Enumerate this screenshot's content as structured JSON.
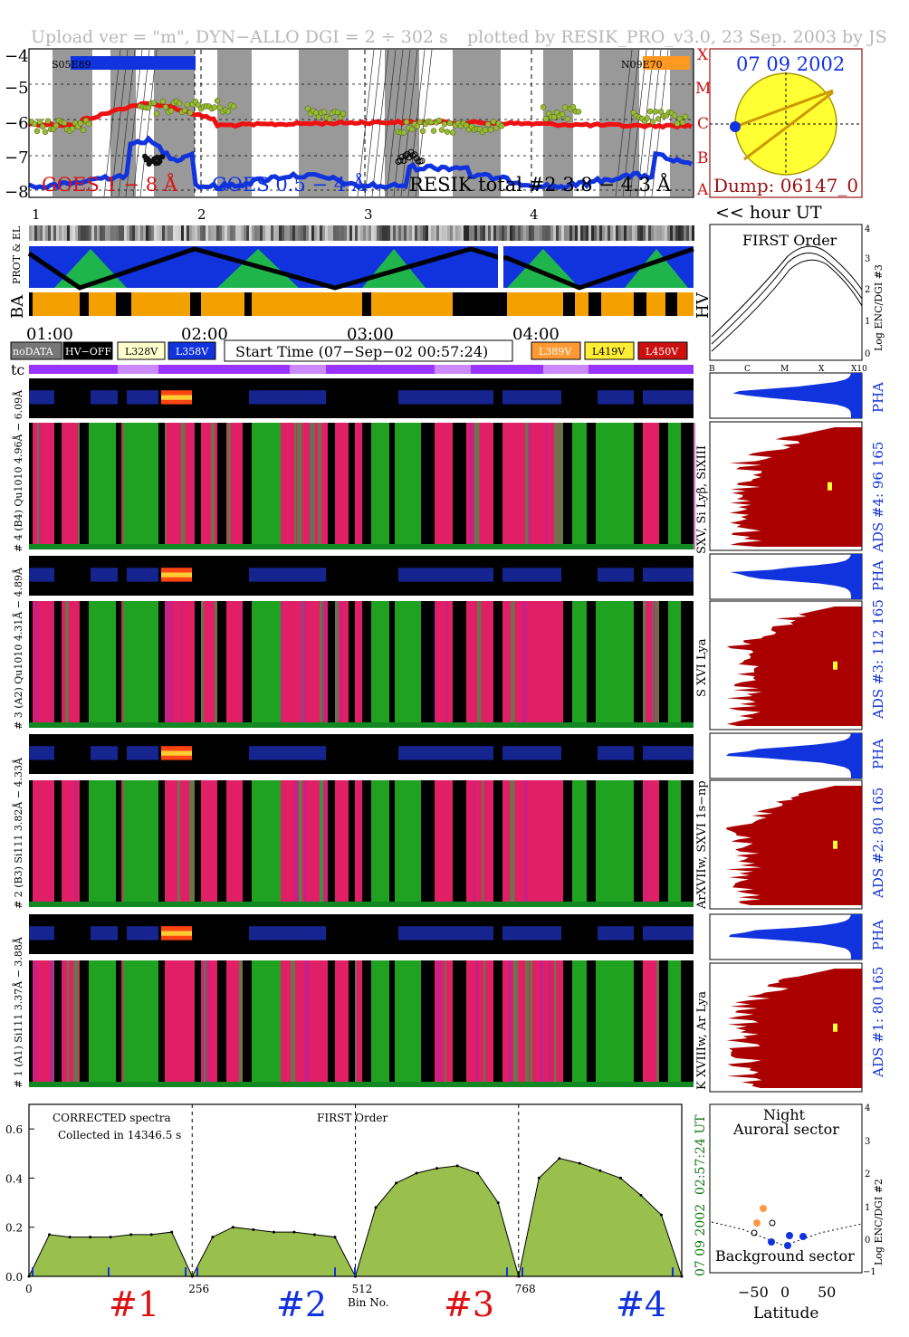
{
  "header": {
    "left": "Upload ver = \"m\", DYN−ALLO DGI =   2 ÷ 302 s",
    "right": "plotted by RESIK_PRO_v3.0, 23 Sep. 2003 by JS"
  },
  "goes_panel": {
    "yticks": [
      "−4",
      "−5",
      "−6",
      "−7",
      "−8"
    ],
    "class_letters": [
      "X",
      "M",
      "C",
      "B",
      "A"
    ],
    "region_left": "S05E89",
    "region_right": "N09E70",
    "label_goes18": "GOES 1 − 8 Å",
    "label_goes05": "GOES 0.5 − 4 Å",
    "label_resik": "RESIK total #2  3.8 − 4.3 Å",
    "colors": {
      "goes18": "#ee1111",
      "goes05": "#1133dd",
      "resik": "#99bb33"
    }
  },
  "sun_panel": {
    "date": "07 09 2002",
    "dump": "Dump: 06147_0"
  },
  "orbit_numbers": [
    "1",
    "2",
    "3",
    "4"
  ],
  "hour_label": "<< hour UT",
  "strip_labels": {
    "prot": "PROT & EL",
    "ba": "BA",
    "hv": "HV"
  },
  "first_order": {
    "title": "FIRST Order",
    "ylabel": "Log ENC/DGI #3",
    "yticks": [
      "4",
      "3",
      "2",
      "1",
      "0"
    ],
    "xticks": [
      "B",
      "C",
      "M",
      "X",
      "X10"
    ]
  },
  "time_axis": [
    "01:00",
    "02:00",
    "03:00",
    "04:00"
  ],
  "legend": {
    "nodata": "noDATA",
    "hvoff": "HV−OFF",
    "v328": "L328V",
    "v358": "L358V",
    "start_time": "Start Time (07−Sep−02 00:57:24)",
    "v389": "L389V",
    "v419": "L419V",
    "v450": "L450V",
    "colors": {
      "v328": "#ffffcc",
      "v358": "#1133dd",
      "v389": "#ff9933",
      "v419": "#ffee33",
      "v450": "#cc1111"
    }
  },
  "tc_label": "tc",
  "channels": [
    {
      "id": "4",
      "left_label": "# 4 (B4) Qu1010 4.96Å − 6.09Å",
      "side_label": "SXV, Si Lyβ, SiXIII",
      "ads": "ADS #4:   96 165"
    },
    {
      "id": "3",
      "left_label": "# 3 (A2) Qu1010 4.31Å − 4.89Å",
      "side_label": "S XVI Lya",
      "ads": "ADS #3:   112 165"
    },
    {
      "id": "2",
      "left_label": "# 2 (B3) Si111 3.82Å − 4.33Å",
      "side_label": "ArXVIIw, SXVI 1s−np",
      "ads": "ADS #2:   80 165"
    },
    {
      "id": "1",
      "left_label": "# 1 (A1) Si111 3.37Å − 3.88Å",
      "side_label": "K XVIIIw, Ar Lya",
      "ads": "ADS #1:   80 165"
    }
  ],
  "pha_label": "PHA",
  "spectrum": {
    "note1": "CORRECTED spectra",
    "note2": "Collected in 14346.5 s",
    "order": "FIRST Order",
    "side_time": "02:57:24 UT",
    "side_date": "07 09 2002",
    "xlabel": "Bin No.",
    "channel_labels": [
      "#1",
      "#2",
      "#3",
      "#4"
    ],
    "channel_colors": [
      "#dd1111",
      "#1133dd",
      "#dd1111",
      "#1133dd"
    ]
  },
  "chart_data": {
    "type": "area",
    "x": [
      0,
      32,
      64,
      96,
      128,
      160,
      192,
      224,
      256,
      288,
      320,
      352,
      384,
      416,
      448,
      480,
      512,
      544,
      576,
      608,
      640,
      672,
      704,
      736,
      768,
      800,
      832,
      864,
      896,
      928,
      960,
      992,
      1024
    ],
    "values": [
      0.0,
      0.17,
      0.16,
      0.16,
      0.16,
      0.17,
      0.17,
      0.18,
      0.0,
      0.16,
      0.2,
      0.19,
      0.18,
      0.18,
      0.17,
      0.16,
      0.0,
      0.28,
      0.38,
      0.42,
      0.44,
      0.45,
      0.42,
      0.3,
      0.0,
      0.4,
      0.48,
      0.46,
      0.43,
      0.4,
      0.33,
      0.25,
      0.0
    ],
    "xticks": [
      0,
      256,
      512,
      768
    ],
    "yticks": [
      0.0,
      0.2,
      0.4,
      0.6
    ],
    "ylim": [
      0,
      0.7
    ],
    "xlim": [
      0,
      1024
    ],
    "xlabel": "Bin No.",
    "ylabel": ""
  },
  "latitude_panel": {
    "title1": "Night",
    "title2": "Auroral sector",
    "bottom": "Background sector",
    "xlabel": "Latitude",
    "xticks": [
      "−50",
      "0",
      "50"
    ],
    "ylabel": "Log ENC/DGI #2",
    "yticks": [
      "4",
      "3",
      "2",
      "1",
      "0",
      "−1"
    ]
  }
}
